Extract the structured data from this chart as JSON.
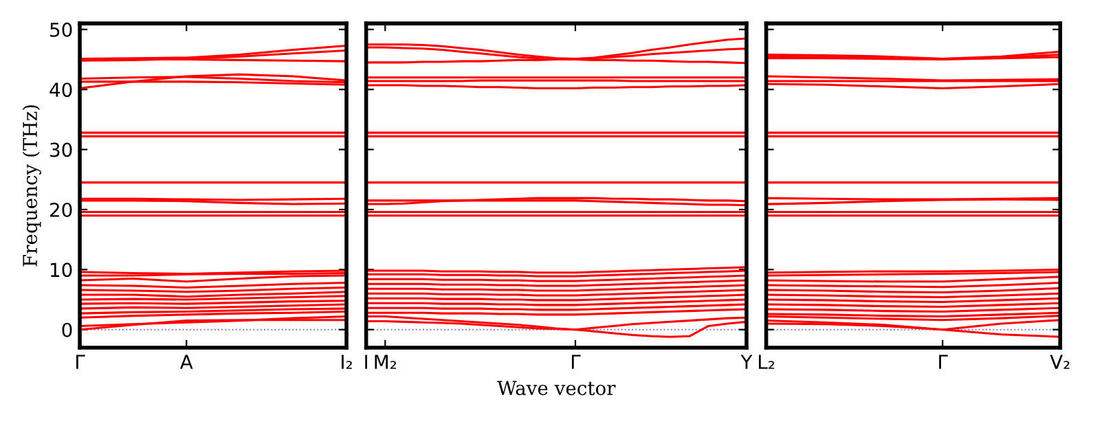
{
  "chart_data": [
    {
      "type": "line",
      "ylabel": "Frequency (THz)",
      "categories": [
        "Γ",
        null,
        "A",
        null,
        null,
        "I₂"
      ],
      "ylim": [
        -3,
        51
      ],
      "yticks": [
        0,
        10,
        20,
        30,
        40,
        50
      ],
      "grid": false,
      "line_style": "solid",
      "ref_lines": [
        {
          "axis": "y",
          "value": 0,
          "color": "#7777dd",
          "line_style": "dotted"
        }
      ],
      "series": [
        {
          "color": "#ff0000",
          "values": [
            45.1,
            45.2,
            45.3,
            45.8,
            46.6,
            47.3
          ]
        },
        {
          "color": "#ff0000",
          "values": [
            44.8,
            44.9,
            45.1,
            45.5,
            46.0,
            46.5
          ]
        },
        {
          "color": "#ff0000",
          "values": [
            45.0,
            45.0,
            45.0,
            44.9,
            44.8,
            44.7
          ]
        },
        {
          "color": "#ff0000",
          "values": [
            40.2,
            41.3,
            42.2,
            42.5,
            42.2,
            41.5
          ]
        },
        {
          "color": "#ff0000",
          "values": [
            41.8,
            42.0,
            42.1,
            41.8,
            41.4,
            41.2
          ]
        },
        {
          "color": "#ff0000",
          "values": [
            41.3,
            41.3,
            41.3,
            41.2,
            41.0,
            40.8
          ]
        },
        {
          "color": "#ff0000",
          "values": [
            32.2,
            32.2,
            32.2,
            32.2,
            32.2,
            32.2
          ]
        },
        {
          "color": "#ff0000",
          "values": [
            32.8,
            32.8,
            32.8,
            32.8,
            32.8,
            32.8
          ]
        },
        {
          "color": "#ff0000",
          "values": [
            24.5,
            24.5,
            24.5,
            24.5,
            24.5,
            24.5
          ]
        },
        {
          "color": "#ff0000",
          "values": [
            21.8,
            21.8,
            21.7,
            21.6,
            21.7,
            21.8
          ]
        },
        {
          "color": "#ff0000",
          "values": [
            21.5,
            21.5,
            21.4,
            21.1,
            20.9,
            21.0
          ]
        },
        {
          "color": "#ff0000",
          "values": [
            19.0,
            19.0,
            19.0,
            19.0,
            19.0,
            19.0
          ]
        },
        {
          "color": "#ff0000",
          "values": [
            19.6,
            19.6,
            19.6,
            19.6,
            19.6,
            19.6
          ]
        },
        {
          "color": "#ff0000",
          "values": [
            9.6,
            9.4,
            9.3,
            9.5,
            9.7,
            9.8
          ]
        },
        {
          "color": "#ff0000",
          "values": [
            9.0,
            9.0,
            9.2,
            9.3,
            9.3,
            9.4
          ]
        },
        {
          "color": "#ff0000",
          "values": [
            8.2,
            8.5,
            8.0,
            8.5,
            8.9,
            9.0
          ]
        },
        {
          "color": "#ff0000",
          "values": [
            7.4,
            7.3,
            7.0,
            7.3,
            7.6,
            7.8
          ]
        },
        {
          "color": "#ff0000",
          "values": [
            6.6,
            6.5,
            6.3,
            6.5,
            6.8,
            7.0
          ]
        },
        {
          "color": "#ff0000",
          "values": [
            5.8,
            5.8,
            5.5,
            5.8,
            6.0,
            6.3
          ]
        },
        {
          "color": "#ff0000",
          "values": [
            5.0,
            5.1,
            5.0,
            5.2,
            5.4,
            5.6
          ]
        },
        {
          "color": "#ff0000",
          "values": [
            4.3,
            4.4,
            4.3,
            4.5,
            4.7,
            4.8
          ]
        },
        {
          "color": "#ff0000",
          "values": [
            3.5,
            3.7,
            3.6,
            3.8,
            4.0,
            4.2
          ]
        },
        {
          "color": "#ff0000",
          "values": [
            2.7,
            2.9,
            3.0,
            3.2,
            3.4,
            3.5
          ]
        },
        {
          "color": "#ff0000",
          "values": [
            2.0,
            2.3,
            2.5,
            2.7,
            2.8,
            3.0
          ]
        },
        {
          "color": "#ff0000",
          "values": [
            0,
            0.8,
            1.5,
            1.6,
            1.6,
            1.6
          ]
        },
        {
          "color": "#ff0000",
          "values": [
            0.6,
            0.9,
            1.2,
            1.5,
            1.9,
            2.2
          ]
        }
      ]
    },
    {
      "type": "line",
      "xlabel": "Wave vector",
      "categories": [
        "I",
        "M₂",
        null,
        null,
        null,
        null,
        null,
        null,
        null,
        null,
        null,
        "Γ",
        null,
        null,
        null,
        null,
        null,
        null,
        null,
        null,
        "Y"
      ],
      "ylim": [
        -3,
        51
      ],
      "yticks": [
        0,
        10,
        20,
        30,
        40,
        50
      ],
      "tick_labels": "x",
      "grid": false,
      "line_style": "solid",
      "ref_lines": [
        {
          "axis": "y",
          "value": 0,
          "color": "#7777dd",
          "line_style": "dotted"
        }
      ],
      "series": [
        {
          "color": "#ff0000",
          "values": [
            47.5,
            47.5,
            47.5,
            47.4,
            47.2,
            46.9,
            46.6,
            46.2,
            45.8,
            45.5,
            45.2,
            45.1,
            45.3,
            45.7,
            46.1,
            46.6,
            47.0,
            47.5,
            47.9,
            48.3,
            48.5
          ]
        },
        {
          "color": "#ff0000",
          "values": [
            47.0,
            47.0,
            46.9,
            46.8,
            46.6,
            46.3,
            46.0,
            45.7,
            45.4,
            45.2,
            45.1,
            45.1,
            45.2,
            45.4,
            45.6,
            45.9,
            46.1,
            46.3,
            46.5,
            46.7,
            46.8
          ]
        },
        {
          "color": "#ff0000",
          "values": [
            44.5,
            44.5,
            44.5,
            44.6,
            44.6,
            44.7,
            44.7,
            44.8,
            44.9,
            44.9,
            45.0,
            45.0,
            44.9,
            44.9,
            44.8,
            44.8,
            44.7,
            44.6,
            44.6,
            44.5,
            44.4
          ]
        },
        {
          "color": "#ff0000",
          "values": [
            42.0,
            42.0,
            42.0,
            42.0,
            42.0,
            42.0,
            42.0,
            42.0,
            42.0,
            42.0,
            42.0,
            42.0,
            42.0,
            42.0,
            42.0,
            42.0,
            42.0,
            42.0,
            42.0,
            42.0,
            42.0
          ]
        },
        {
          "color": "#ff0000",
          "values": [
            40.7,
            40.7,
            40.7,
            40.6,
            40.6,
            40.5,
            40.4,
            40.4,
            40.3,
            40.2,
            40.2,
            40.2,
            40.3,
            40.3,
            40.4,
            40.4,
            40.5,
            40.5,
            40.6,
            40.6,
            40.7
          ]
        },
        {
          "color": "#ff0000",
          "values": [
            41.4,
            41.4,
            41.4,
            41.4,
            41.4,
            41.4,
            41.5,
            41.5,
            41.5,
            41.5,
            41.5,
            41.5,
            41.5,
            41.5,
            41.4,
            41.4,
            41.4,
            41.4,
            41.4,
            41.4,
            41.4
          ]
        },
        {
          "color": "#ff0000",
          "values": [
            32.2,
            32.2,
            32.2,
            32.2,
            32.2,
            32.2,
            32.2,
            32.2,
            32.2,
            32.2,
            32.2,
            32.2,
            32.2,
            32.2,
            32.2,
            32.2,
            32.2,
            32.2,
            32.2,
            32.2,
            32.2
          ]
        },
        {
          "color": "#ff0000",
          "values": [
            32.8,
            32.8,
            32.8,
            32.8,
            32.8,
            32.8,
            32.8,
            32.8,
            32.8,
            32.8,
            32.8,
            32.8,
            32.8,
            32.8,
            32.8,
            32.8,
            32.8,
            32.8,
            32.8,
            32.8,
            32.8
          ]
        },
        {
          "color": "#ff0000",
          "values": [
            24.5,
            24.5,
            24.5,
            24.5,
            24.5,
            24.5,
            24.5,
            24.5,
            24.5,
            24.5,
            24.5,
            24.5,
            24.5,
            24.5,
            24.5,
            24.5,
            24.5,
            24.5,
            24.5,
            24.5,
            24.5
          ]
        },
        {
          "color": "#ff0000",
          "values": [
            20.9,
            20.9,
            21.0,
            21.2,
            21.4,
            21.5,
            21.6,
            21.7,
            21.8,
            21.9,
            21.9,
            21.9,
            21.9,
            21.8,
            21.8,
            21.7,
            21.7,
            21.6,
            21.5,
            21.5,
            21.4
          ]
        },
        {
          "color": "#ff0000",
          "values": [
            21.5,
            21.5,
            21.5,
            21.5,
            21.5,
            21.5,
            21.5,
            21.5,
            21.5,
            21.5,
            21.5,
            21.5,
            21.4,
            21.3,
            21.2,
            21.1,
            21.0,
            20.9,
            20.8,
            20.8,
            20.7
          ]
        },
        {
          "color": "#ff0000",
          "values": [
            19.0,
            19.0,
            19.0,
            19.0,
            19.0,
            19.0,
            19.0,
            19.0,
            19.0,
            19.0,
            19.0,
            19.0,
            19.0,
            19.0,
            19.0,
            19.0,
            19.0,
            19.0,
            19.0,
            19.0,
            19.0
          ]
        },
        {
          "color": "#ff0000",
          "values": [
            19.6,
            19.6,
            19.6,
            19.6,
            19.6,
            19.6,
            19.6,
            19.6,
            19.6,
            19.6,
            19.6,
            19.6,
            19.6,
            19.6,
            19.6,
            19.6,
            19.6,
            19.6,
            19.6,
            19.6,
            19.6
          ]
        },
        {
          "color": "#ff0000",
          "values": [
            9.8,
            9.8,
            9.8,
            9.8,
            9.7,
            9.7,
            9.7,
            9.6,
            9.6,
            9.5,
            9.5,
            9.5,
            9.6,
            9.7,
            9.8,
            9.9,
            10.0,
            10.1,
            10.2,
            10.3,
            10.4
          ]
        },
        {
          "color": "#ff0000",
          "values": [
            9.2,
            9.2,
            9.2,
            9.2,
            9.1,
            9.1,
            9.1,
            9.0,
            9.0,
            8.9,
            8.9,
            8.9,
            9.0,
            9.1,
            9.2,
            9.3,
            9.4,
            9.5,
            9.6,
            9.7,
            9.8
          ]
        },
        {
          "color": "#ff0000",
          "values": [
            8.4,
            8.4,
            8.4,
            8.4,
            8.3,
            8.3,
            8.3,
            8.2,
            8.2,
            8.1,
            8.1,
            8.1,
            8.2,
            8.3,
            8.4,
            8.5,
            8.6,
            8.7,
            8.8,
            8.9,
            9.0
          ]
        },
        {
          "color": "#ff0000",
          "values": [
            7.6,
            7.6,
            7.6,
            7.6,
            7.5,
            7.5,
            7.5,
            7.4,
            7.4,
            7.3,
            7.3,
            7.3,
            7.4,
            7.5,
            7.6,
            7.7,
            7.8,
            7.9,
            8.0,
            8.1,
            8.2
          ]
        },
        {
          "color": "#ff0000",
          "values": [
            6.8,
            6.8,
            6.8,
            6.8,
            6.7,
            6.7,
            6.7,
            6.6,
            6.6,
            6.5,
            6.5,
            6.5,
            6.6,
            6.7,
            6.8,
            6.9,
            7.0,
            7.1,
            7.2,
            7.3,
            7.4
          ]
        },
        {
          "color": "#ff0000",
          "values": [
            6.0,
            6.0,
            6.0,
            6.0,
            5.9,
            5.9,
            5.9,
            5.8,
            5.8,
            5.7,
            5.7,
            5.7,
            5.8,
            5.9,
            6.0,
            6.1,
            6.2,
            6.3,
            6.4,
            6.5,
            6.6
          ]
        },
        {
          "color": "#ff0000",
          "values": [
            5.2,
            5.2,
            5.2,
            5.2,
            5.1,
            5.1,
            5.1,
            5.0,
            5.0,
            4.9,
            4.9,
            4.9,
            5.0,
            5.1,
            5.2,
            5.3,
            5.4,
            5.5,
            5.6,
            5.7,
            5.8
          ]
        },
        {
          "color": "#ff0000",
          "values": [
            4.4,
            4.4,
            4.4,
            4.4,
            4.3,
            4.3,
            4.3,
            4.2,
            4.2,
            4.1,
            4.1,
            4.1,
            4.2,
            4.3,
            4.4,
            4.5,
            4.6,
            4.7,
            4.8,
            4.9,
            5.0
          ]
        },
        {
          "color": "#ff0000",
          "values": [
            3.6,
            3.6,
            3.6,
            3.6,
            3.5,
            3.5,
            3.5,
            3.4,
            3.4,
            3.3,
            3.3,
            3.3,
            3.4,
            3.5,
            3.6,
            3.7,
            3.8,
            3.9,
            4.0,
            4.1,
            4.2
          ]
        },
        {
          "color": "#ff0000",
          "values": [
            2.8,
            2.8,
            2.8,
            2.8,
            2.7,
            2.7,
            2.7,
            2.6,
            2.6,
            2.5,
            2.5,
            2.5,
            2.6,
            2.7,
            2.8,
            2.9,
            3.0,
            3.1,
            3.2,
            3.3,
            3.4
          ]
        },
        {
          "color": "#ff0000",
          "values": [
            2.2,
            2.2,
            2.0,
            1.8,
            1.6,
            1.4,
            1.2,
            1.0,
            0.8,
            0.5,
            0.2,
            0.0,
            -0.3,
            -0.6,
            -0.9,
            -1.1,
            -1.2,
            -1.1,
            0.6,
            1.0,
            1.3
          ]
        },
        {
          "color": "#ff0000",
          "values": [
            1.4,
            1.4,
            1.3,
            1.2,
            1.1,
            1.0,
            0.8,
            0.6,
            0.4,
            0.2,
            0.1,
            0.0,
            0.3,
            0.6,
            0.9,
            1.1,
            1.3,
            1.5,
            1.7,
            1.9,
            2.0
          ]
        }
      ]
    },
    {
      "type": "line",
      "categories": [
        "L₂",
        null,
        null,
        "Γ",
        null,
        "V₂"
      ],
      "ylim": [
        -3,
        51
      ],
      "yticks": [
        0,
        10,
        20,
        30,
        40,
        50
      ],
      "tick_labels": "x",
      "grid": false,
      "line_style": "solid",
      "ref_lines": [
        {
          "axis": "y",
          "value": 0,
          "color": "#7777dd",
          "line_style": "dotted"
        }
      ],
      "series": [
        {
          "color": "#ff0000",
          "values": [
            45.8,
            45.7,
            45.5,
            45.1,
            45.5,
            46.3
          ]
        },
        {
          "color": "#ff0000",
          "values": [
            45.5,
            45.4,
            45.3,
            45.1,
            45.3,
            45.8
          ]
        },
        {
          "color": "#ff0000",
          "values": [
            45.2,
            45.2,
            45.1,
            45.0,
            45.2,
            45.4
          ]
        },
        {
          "color": "#ff0000",
          "values": [
            42.2,
            42.0,
            41.8,
            41.5,
            41.6,
            41.7
          ]
        },
        {
          "color": "#ff0000",
          "values": [
            41.4,
            41.4,
            41.4,
            41.4,
            41.4,
            41.4
          ]
        },
        {
          "color": "#ff0000",
          "values": [
            40.9,
            40.8,
            40.5,
            40.2,
            40.5,
            40.9
          ]
        },
        {
          "color": "#ff0000",
          "values": [
            32.2,
            32.2,
            32.2,
            32.2,
            32.2,
            32.2
          ]
        },
        {
          "color": "#ff0000",
          "values": [
            32.8,
            32.8,
            32.8,
            32.8,
            32.8,
            32.8
          ]
        },
        {
          "color": "#ff0000",
          "values": [
            24.5,
            24.5,
            24.5,
            24.5,
            24.5,
            24.5
          ]
        },
        {
          "color": "#ff0000",
          "values": [
            20.9,
            21.1,
            21.4,
            21.6,
            21.7,
            21.6
          ]
        },
        {
          "color": "#ff0000",
          "values": [
            21.9,
            21.8,
            21.7,
            21.7,
            21.8,
            21.9
          ]
        },
        {
          "color": "#ff0000",
          "values": [
            19.0,
            19.0,
            19.0,
            19.0,
            19.0,
            19.0
          ]
        },
        {
          "color": "#ff0000",
          "values": [
            19.6,
            19.6,
            19.6,
            19.6,
            19.6,
            19.6
          ]
        },
        {
          "color": "#ff0000",
          "values": [
            9.5,
            9.6,
            9.7,
            9.7,
            9.8,
            10.0
          ]
        },
        {
          "color": "#ff0000",
          "values": [
            9.0,
            9.1,
            9.2,
            9.3,
            9.4,
            9.6
          ]
        },
        {
          "color": "#ff0000",
          "values": [
            8.2,
            8.1,
            8.0,
            8.0,
            8.4,
            8.8
          ]
        },
        {
          "color": "#ff0000",
          "values": [
            7.4,
            7.3,
            7.2,
            7.1,
            7.4,
            7.8
          ]
        },
        {
          "color": "#ff0000",
          "values": [
            6.6,
            6.5,
            6.3,
            6.2,
            6.5,
            6.9
          ]
        },
        {
          "color": "#ff0000",
          "values": [
            5.8,
            5.7,
            5.5,
            5.4,
            5.7,
            6.0
          ]
        },
        {
          "color": "#ff0000",
          "values": [
            5.0,
            4.9,
            4.7,
            4.6,
            4.9,
            5.2
          ]
        },
        {
          "color": "#ff0000",
          "values": [
            4.2,
            4.1,
            3.9,
            3.8,
            4.1,
            4.4
          ]
        },
        {
          "color": "#ff0000",
          "values": [
            3.4,
            3.3,
            3.1,
            3.0,
            3.3,
            3.6
          ]
        },
        {
          "color": "#ff0000",
          "values": [
            2.6,
            2.5,
            2.3,
            2.2,
            2.5,
            2.8
          ]
        },
        {
          "color": "#ff0000",
          "values": [
            2.2,
            2.0,
            1.8,
            1.6,
            1.9,
            2.3
          ]
        },
        {
          "color": "#ff0000",
          "values": [
            1.5,
            1.2,
            0.8,
            0,
            1.0,
            1.6
          ]
        },
        {
          "color": "#ff0000",
          "values": [
            1.0,
            0.9,
            0.6,
            0,
            -0.8,
            -1.2
          ]
        }
      ]
    }
  ]
}
